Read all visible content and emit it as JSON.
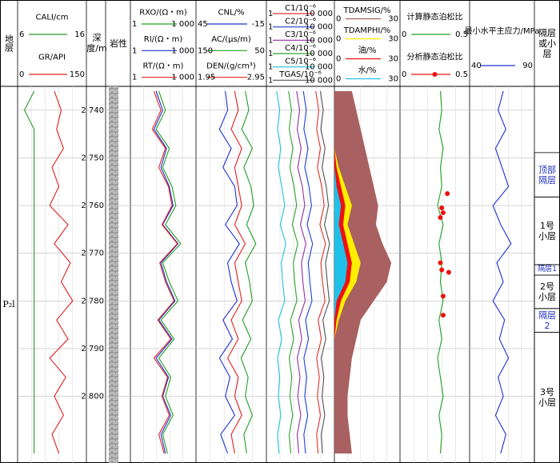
{
  "chart_data": {
    "type": "well-log",
    "depth": [
      2736,
      2740,
      2744,
      2748,
      2752,
      2756,
      2760,
      2764,
      2768,
      2772,
      2776,
      2780,
      2784,
      2788,
      2792,
      2796,
      2800,
      2804,
      2808,
      2812
    ],
    "ylim": [
      2735,
      2814
    ],
    "yticks": [
      {
        "value": 2740,
        "label": "2 740"
      },
      {
        "value": 2750,
        "label": "2 750"
      },
      {
        "value": 2760,
        "label": "2 760"
      },
      {
        "value": 2770,
        "label": "2 770"
      },
      {
        "value": 2780,
        "label": "2 780"
      },
      {
        "value": 2790,
        "label": "2 790"
      },
      {
        "value": 2800,
        "label": "2 800"
      }
    ],
    "headers": {
      "formation": "地层",
      "depth": "深度/m",
      "lithology": "岩性",
      "zone": "隔层或小层"
    },
    "formation": "P₂l",
    "tracks": [
      {
        "log": false,
        "curves": [
          {
            "name": "CALI/cm",
            "color": "#2a9a2a",
            "xlim": [
              6,
              16
            ],
            "values": [
              8.4,
              7,
              8.4,
              8.4,
              8.4,
              8.4,
              8.4,
              8.4,
              8.4,
              8.4,
              8.4,
              8.4,
              8.4,
              8.4,
              8.4,
              8.4,
              8.4,
              8.4,
              8.4,
              8.4
            ]
          },
          {
            "name": "GR/API",
            "color": "#e02020",
            "xlim": [
              0,
              150
            ],
            "values": [
              80,
              95,
              85,
              100,
              75,
              90,
              70,
              110,
              80,
              115,
              95,
              120,
              85,
              110,
              70,
              105,
              80,
              100,
              75,
              90
            ]
          }
        ]
      },
      {
        "log": true,
        "curves": [
          {
            "name": "RXO/(Ω・m)",
            "color": "#20a020",
            "xlim": [
              1,
              {
                "value": 1000,
                "label": "1 000"
              }
            ],
            "values": [
              20,
              40,
              15,
              60,
              30,
              80,
              120,
              40,
              200,
              30,
              60,
              150,
              25,
              100,
              20,
              70,
              40,
              90,
              30,
              50
            ]
          },
          {
            "name": "RI/(Ω・m)",
            "color": "#2030d0",
            "xlim": [
              1,
              {
                "value": 1000,
                "label": "1 000"
              }
            ],
            "values": [
              15,
              30,
              12,
              45,
              25,
              60,
              90,
              30,
              150,
              25,
              45,
              110,
              20,
              80,
              15,
              55,
              30,
              70,
              25,
              40
            ]
          },
          {
            "name": "RT/(Ω・m)",
            "color": "#e02020",
            "xlim": [
              1,
              {
                "value": 1000,
                "label": "1 000"
              }
            ],
            "values": [
              12,
              25,
              10,
              40,
              20,
              55,
              80,
              28,
              140,
              22,
              40,
              100,
              18,
              70,
              12,
              50,
              28,
              60,
              20,
              35
            ]
          }
        ]
      },
      {
        "log": false,
        "curves": [
          {
            "name": "CNL/%",
            "color": "#2030d0",
            "xlim": [
              45,
              -15
            ],
            "values": [
              20,
              18,
              25,
              15,
              22,
              12,
              10,
              20,
              8,
              18,
              15,
              10,
              22,
              14,
              25,
              16,
              20,
              12,
              24,
              18
            ]
          },
          {
            "name": "AC/(μs/m)",
            "color": "#20a020",
            "xlim": [
              150,
              50
            ],
            "values": [
              80,
              75,
              85,
              70,
              82,
              72,
              68,
              78,
              65,
              80,
              74,
              70,
              84,
              72,
              86,
              76,
              80,
              70,
              82,
              78
            ]
          },
          {
            "name": "DEN/(g/cm³)",
            "color": "#e02020",
            "xlim": [
              1.95,
              2.95
            ],
            "values": [
              2.5,
              2.55,
              2.45,
              2.6,
              2.5,
              2.55,
              2.6,
              2.5,
              2.65,
              2.5,
              2.55,
              2.6,
              2.45,
              2.55,
              2.4,
              2.55,
              2.5,
              2.6,
              2.45,
              2.5
            ]
          }
        ]
      },
      {
        "log": true,
        "curves": [
          {
            "name": "C1/10⁻⁶",
            "color": "#e03030",
            "xlim": [
              1,
              {
                "value": 10000,
                "label": "10 000"
              }
            ],
            "values": [
              800,
              1200,
              900,
              1500,
              1000,
              1800,
              2500,
              1400,
              3000,
              1600,
              2000,
              2800,
              1100,
              1700,
              900,
              1300,
              1000,
              1500,
              900,
              1100
            ]
          },
          {
            "name": "C2/10⁻⁶",
            "color": "#2040d0",
            "xlim": [
              1,
              {
                "value": 10000,
                "label": "10 000"
              }
            ],
            "values": [
              150,
              220,
              160,
              280,
              180,
              320,
              450,
              250,
              520,
              290,
              360,
              480,
              200,
              300,
              160,
              230,
              180,
              270,
              160,
              200
            ]
          },
          {
            "name": "C3/10⁻⁶",
            "color": "#9030a0",
            "xlim": [
              1,
              {
                "value": 10000,
                "label": "10 000"
              }
            ],
            "values": [
              60,
              90,
              65,
              110,
              70,
              130,
              180,
              100,
              210,
              115,
              140,
              190,
              80,
              120,
              65,
              95,
              70,
              105,
              65,
              80
            ]
          },
          {
            "name": "C4/10⁻⁶",
            "color": "#30a030",
            "xlim": [
              1,
              {
                "value": 10000,
                "label": "10 000"
              }
            ],
            "values": [
              20,
              30,
              22,
              36,
              24,
              42,
              60,
              33,
              70,
              38,
              46,
              62,
              26,
              40,
              22,
              31,
              24,
              35,
              22,
              27
            ]
          },
          {
            "name": "C5/10⁻⁶",
            "color": "#20c0e0",
            "xlim": [
              1,
              {
                "value": 10000,
                "label": "10 000"
              }
            ],
            "values": [
              4,
              6,
              4.5,
              7,
              5,
              8,
              12,
              6.5,
              14,
              7.5,
              9,
              12,
              5,
              8,
              4.5,
              6,
              5,
              7,
              4.5,
              5.5
            ]
          },
          {
            "name": "TGAS/10⁻⁶",
            "color": "#505050",
            "xlim": [
              1,
              {
                "value": 10000,
                "label": "10 000"
              }
            ],
            "values": [
              1500,
              2200,
              1600,
              2800,
              1900,
              3300,
              4500,
              2600,
              5200,
              3000,
              3800,
              5000,
              2100,
              3100,
              1700,
              2400,
              1900,
              2700,
              1700,
              2000
            ]
          }
        ]
      },
      {
        "log": false,
        "fill": true,
        "curves": [
          {
            "name": "TDAMSIG/%",
            "color": "#a86060",
            "xlim": [
              0,
              30
            ],
            "values": [
              8,
              10,
              12,
              14,
              16,
              18,
              20,
              19,
              22,
              26,
              24,
              18,
              12,
              10,
              8,
              7,
              6,
              6,
              7,
              8
            ]
          },
          {
            "name": "TDAMPHI/%",
            "color": "#ffee00",
            "xlim": [
              0,
              30
            ],
            "values": [
              0,
              0,
              0,
              0,
              2,
              5,
              8,
              6,
              9,
              12,
              10,
              5,
              2,
              0,
              0,
              0,
              0,
              0,
              0,
              0
            ]
          },
          {
            "name": "油/%",
            "color": "#ee1010",
            "xlim": [
              0,
              30
            ],
            "values": [
              0,
              0,
              0,
              0,
              1,
              3,
              5,
              4,
              6,
              8,
              7,
              3,
              1,
              0,
              0,
              0,
              0,
              0,
              0,
              0
            ]
          },
          {
            "name": "水/%",
            "color": "#20c0e8",
            "xlim": [
              0,
              30
            ],
            "values": [
              0,
              0,
              0,
              0,
              0,
              1,
              3,
              2,
              4,
              6,
              5,
              1,
              0,
              0,
              0,
              0,
              0,
              0,
              0,
              0
            ]
          }
        ]
      },
      {
        "log": false,
        "curves": [
          {
            "name": "计算静态泊松比",
            "color": "#20a020",
            "xlim": [
              0,
              0.5
            ],
            "values": [
              0.29,
              0.3,
              0.28,
              0.31,
              0.29,
              0.3,
              0.27,
              0.31,
              0.28,
              0.3,
              0.29,
              0.31,
              0.28,
              0.3,
              0.27,
              0.29,
              0.31,
              0.28,
              0.3,
              0.29
            ]
          },
          {
            "name": "分析静态泊松比",
            "color": "#ee1010",
            "marker": "dot",
            "xlim": [
              0,
              0.5
            ],
            "depth": [
              2757.5,
              2760.5,
              2761.5,
              2762.5,
              2772,
              2773.5,
              2774,
              2779,
              2783
            ],
            "values": [
              0.34,
              0.3,
              0.31,
              0.29,
              0.29,
              0.3,
              0.35,
              0.31,
              0.31
            ]
          }
        ]
      },
      {
        "log": false,
        "curves": [
          {
            "name": "最小水平主应力/MPa",
            "color": "#2030d0",
            "xlim": [
              40,
              90
            ],
            "values": [
              66,
              62,
              68,
              60,
              65,
              70,
              58,
              64,
              72,
              61,
              66,
              58,
              67,
              63,
              70,
              62,
              66,
              60,
              68,
              64
            ]
          }
        ]
      }
    ],
    "zones": [
      {
        "label": "顶部隔层",
        "color": "#2030c0",
        "from": 2748.9,
        "to": 2758.2
      },
      {
        "label": "1号小层",
        "color": "#000000",
        "from": 2758.2,
        "to": 2772.4
      },
      {
        "label": "隔层1",
        "color": "#2030c0",
        "from": 2772.4,
        "to": 2774.6
      },
      {
        "label": "2号小层",
        "color": "#000000",
        "from": 2774.6,
        "to": 2781.6
      },
      {
        "label": "隔层2",
        "color": "#2030c0",
        "from": 2781.6,
        "to": 2786.6
      },
      {
        "label": "3号小层",
        "color": "#000000",
        "from": 2786.6,
        "to": 2814
      }
    ]
  }
}
